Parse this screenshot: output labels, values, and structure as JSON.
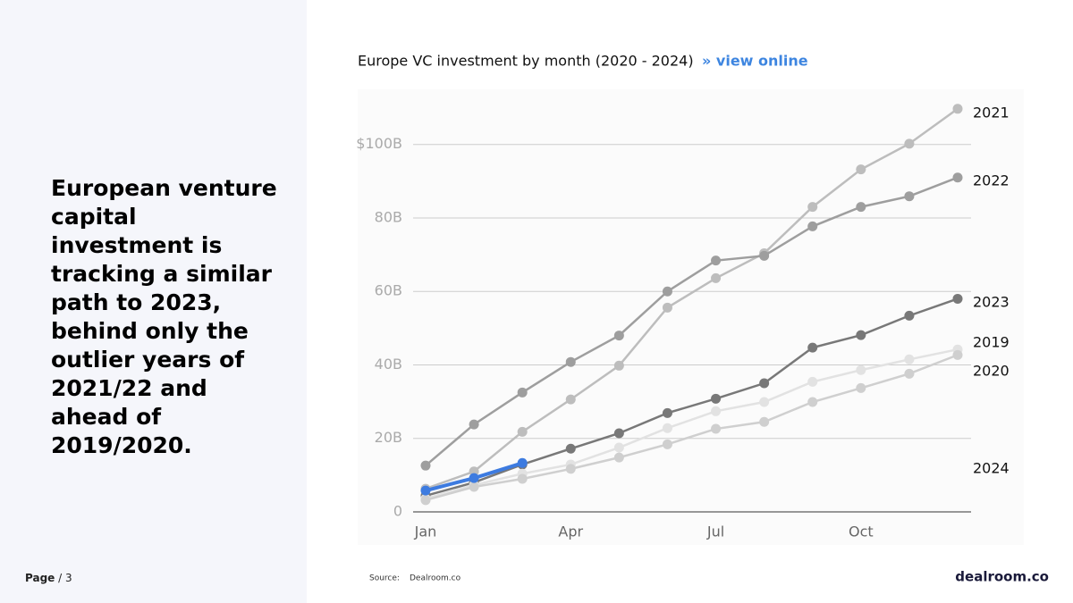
{
  "slide": {
    "headline": "European venture capital investment is tracking a similar path to 2023, behind only the outlier years of 2021/22 and ahead of 2019/2020.",
    "page_label": "Page",
    "page_number": "/ 3",
    "source_label": "Source:",
    "source": "Dealroom.co",
    "logo": "dealroom.co"
  },
  "chart_data": {
    "type": "line",
    "title": "Europe VC investment by month (2020 - 2024)",
    "link": "» view online",
    "categories": [
      "Jan",
      null,
      null,
      "Apr",
      null,
      null,
      "Jul",
      null,
      null,
      "Oct",
      null,
      null
    ],
    "ylim": [
      0,
      115
    ],
    "yticks": [
      0,
      {
        "value": 20,
        "label": "20B"
      },
      {
        "value": 40,
        "label": "40B"
      },
      {
        "value": 60,
        "label": "60B"
      },
      {
        "value": 80,
        "label": "80B"
      },
      {
        "value": 100,
        "label": "$100B"
      }
    ],
    "grid": true,
    "series": [
      {
        "name": "2021",
        "color": "#bdbdbd",
        "values": [
          6.3,
          11,
          21.8,
          30.6,
          39.8,
          55.6,
          63.6,
          70.4,
          83,
          93.2,
          100.2,
          109.7
        ]
      },
      {
        "name": "2022",
        "color": "#9e9e9e",
        "values": [
          12.6,
          23.8,
          32.5,
          40.8,
          48,
          60,
          68.4,
          69.7,
          77.7,
          83,
          85.9,
          91
        ]
      },
      {
        "name": "2023",
        "color": "#787878",
        "values": [
          4.4,
          8,
          12.9,
          17.2,
          21.4,
          26.9,
          30.8,
          35,
          44.7,
          48.1,
          53.4,
          58
        ]
      },
      {
        "name": "2019",
        "color": "#e2e2e2",
        "values": [
          3.6,
          7.3,
          10.4,
          12.9,
          17.5,
          22.8,
          27.4,
          29.9,
          35.4,
          38.6,
          41.5,
          44.2
        ]
      },
      {
        "name": "2020",
        "color": "#cfcfcf",
        "values": [
          3.2,
          6.8,
          9,
          11.7,
          14.8,
          18.4,
          22.6,
          24.5,
          29.9,
          33.7,
          37.6,
          42.7
        ]
      },
      {
        "name": "2024",
        "color": "#3d7be0",
        "values": [
          5.8,
          9.2,
          13.3,
          null,
          null,
          null,
          null,
          null,
          null,
          null,
          null,
          null
        ]
      }
    ]
  }
}
